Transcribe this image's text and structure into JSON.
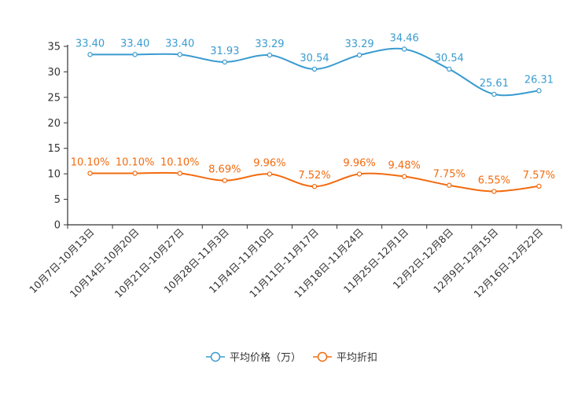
{
  "chart_data": {
    "type": "line",
    "title": "",
    "xlabel": "",
    "ylabel": "",
    "ylim": [
      0,
      35
    ],
    "yticks": [
      0,
      5,
      10,
      15,
      20,
      25,
      30,
      35
    ],
    "grid": false,
    "legend_position": "bottom-center",
    "categories": [
      "10月7日-10月13日",
      "10月14日-10月20日",
      "10月21日-10月27日",
      "10月28日-11月3日",
      "11月4日-11月10日",
      "11月11日-11月17日",
      "11月18日-11月24日",
      "11月25日-12月1日",
      "12月2日-12月8日",
      "12月9日-12月15日",
      "12月16日-12月22日"
    ],
    "series": [
      {
        "name": "平均价格（万）",
        "color": "#3a9bd0",
        "values": [
          33.4,
          33.4,
          33.4,
          31.93,
          33.29,
          30.54,
          33.29,
          34.46,
          30.54,
          25.61,
          26.31
        ],
        "labels": [
          "33.40",
          "33.40",
          "33.40",
          "31.93",
          "33.29",
          "30.54",
          "33.29",
          "34.46",
          "30.54",
          "25.61",
          "26.31"
        ]
      },
      {
        "name": "平均折扣",
        "color": "#f26b0f",
        "values": [
          10.1,
          10.1,
          10.1,
          8.69,
          9.96,
          7.52,
          9.96,
          9.48,
          7.75,
          6.55,
          7.57
        ],
        "labels": [
          "10.10%",
          "10.10%",
          "10.10%",
          "8.69%",
          "9.96%",
          "7.52%",
          "9.96%",
          "9.48%",
          "7.75%",
          "6.55%",
          "7.57%"
        ]
      }
    ]
  }
}
